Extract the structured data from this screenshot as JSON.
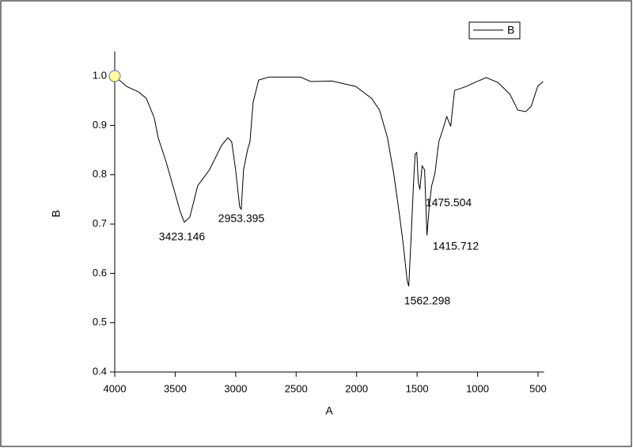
{
  "chart_data": {
    "type": "line",
    "xlabel": "A",
    "ylabel": "B",
    "x": [
      4000,
      3902,
      3804,
      3739,
      3673,
      3641,
      3575,
      3510,
      3458,
      3425,
      3379,
      3314,
      3216,
      3118,
      3065,
      3033,
      3000,
      2967,
      2954,
      2935,
      2902,
      2882,
      2856,
      2810,
      2725,
      2464,
      2379,
      2203,
      2007,
      1876,
      1810,
      1745,
      1693,
      1647,
      1614,
      1582,
      1569,
      1549,
      1529,
      1516,
      1503,
      1490,
      1477,
      1458,
      1438,
      1418,
      1399,
      1379,
      1353,
      1320,
      1288,
      1255,
      1222,
      1190,
      1092,
      1026,
      928,
      830,
      732,
      667,
      601,
      556,
      503,
      458
    ],
    "series": [
      {
        "name": "B",
        "color": "#000000",
        "values": [
          1.0,
          0.979,
          0.968,
          0.955,
          0.915,
          0.875,
          0.826,
          0.77,
          0.725,
          0.704,
          0.714,
          0.778,
          0.81,
          0.859,
          0.875,
          0.867,
          0.81,
          0.735,
          0.73,
          0.81,
          0.85,
          0.867,
          0.947,
          0.992,
          0.998,
          0.998,
          0.989,
          0.99,
          0.979,
          0.955,
          0.931,
          0.875,
          0.802,
          0.722,
          0.658,
          0.585,
          0.574,
          0.674,
          0.786,
          0.842,
          0.845,
          0.786,
          0.77,
          0.818,
          0.81,
          0.677,
          0.738,
          0.778,
          0.802,
          0.867,
          0.891,
          0.918,
          0.898,
          0.971,
          0.979,
          0.987,
          0.997,
          0.987,
          0.963,
          0.931,
          0.928,
          0.939,
          0.979,
          0.989
        ]
      }
    ],
    "xlim": [
      4000,
      450
    ],
    "xticks": [
      4000,
      3500,
      3000,
      2500,
      2000,
      1500,
      1000,
      500
    ],
    "ylim": [
      0.4,
      1.05
    ],
    "yticks": [
      0.4,
      0.5,
      0.6,
      0.7,
      0.8,
      0.9,
      {
        "value": 1,
        "label": "1.0"
      }
    ],
    "annotations": [
      "3423.146",
      "2953.395",
      "1562.298",
      "1475.504",
      "1415.712"
    ],
    "legend": "upper right",
    "grid": false
  }
}
